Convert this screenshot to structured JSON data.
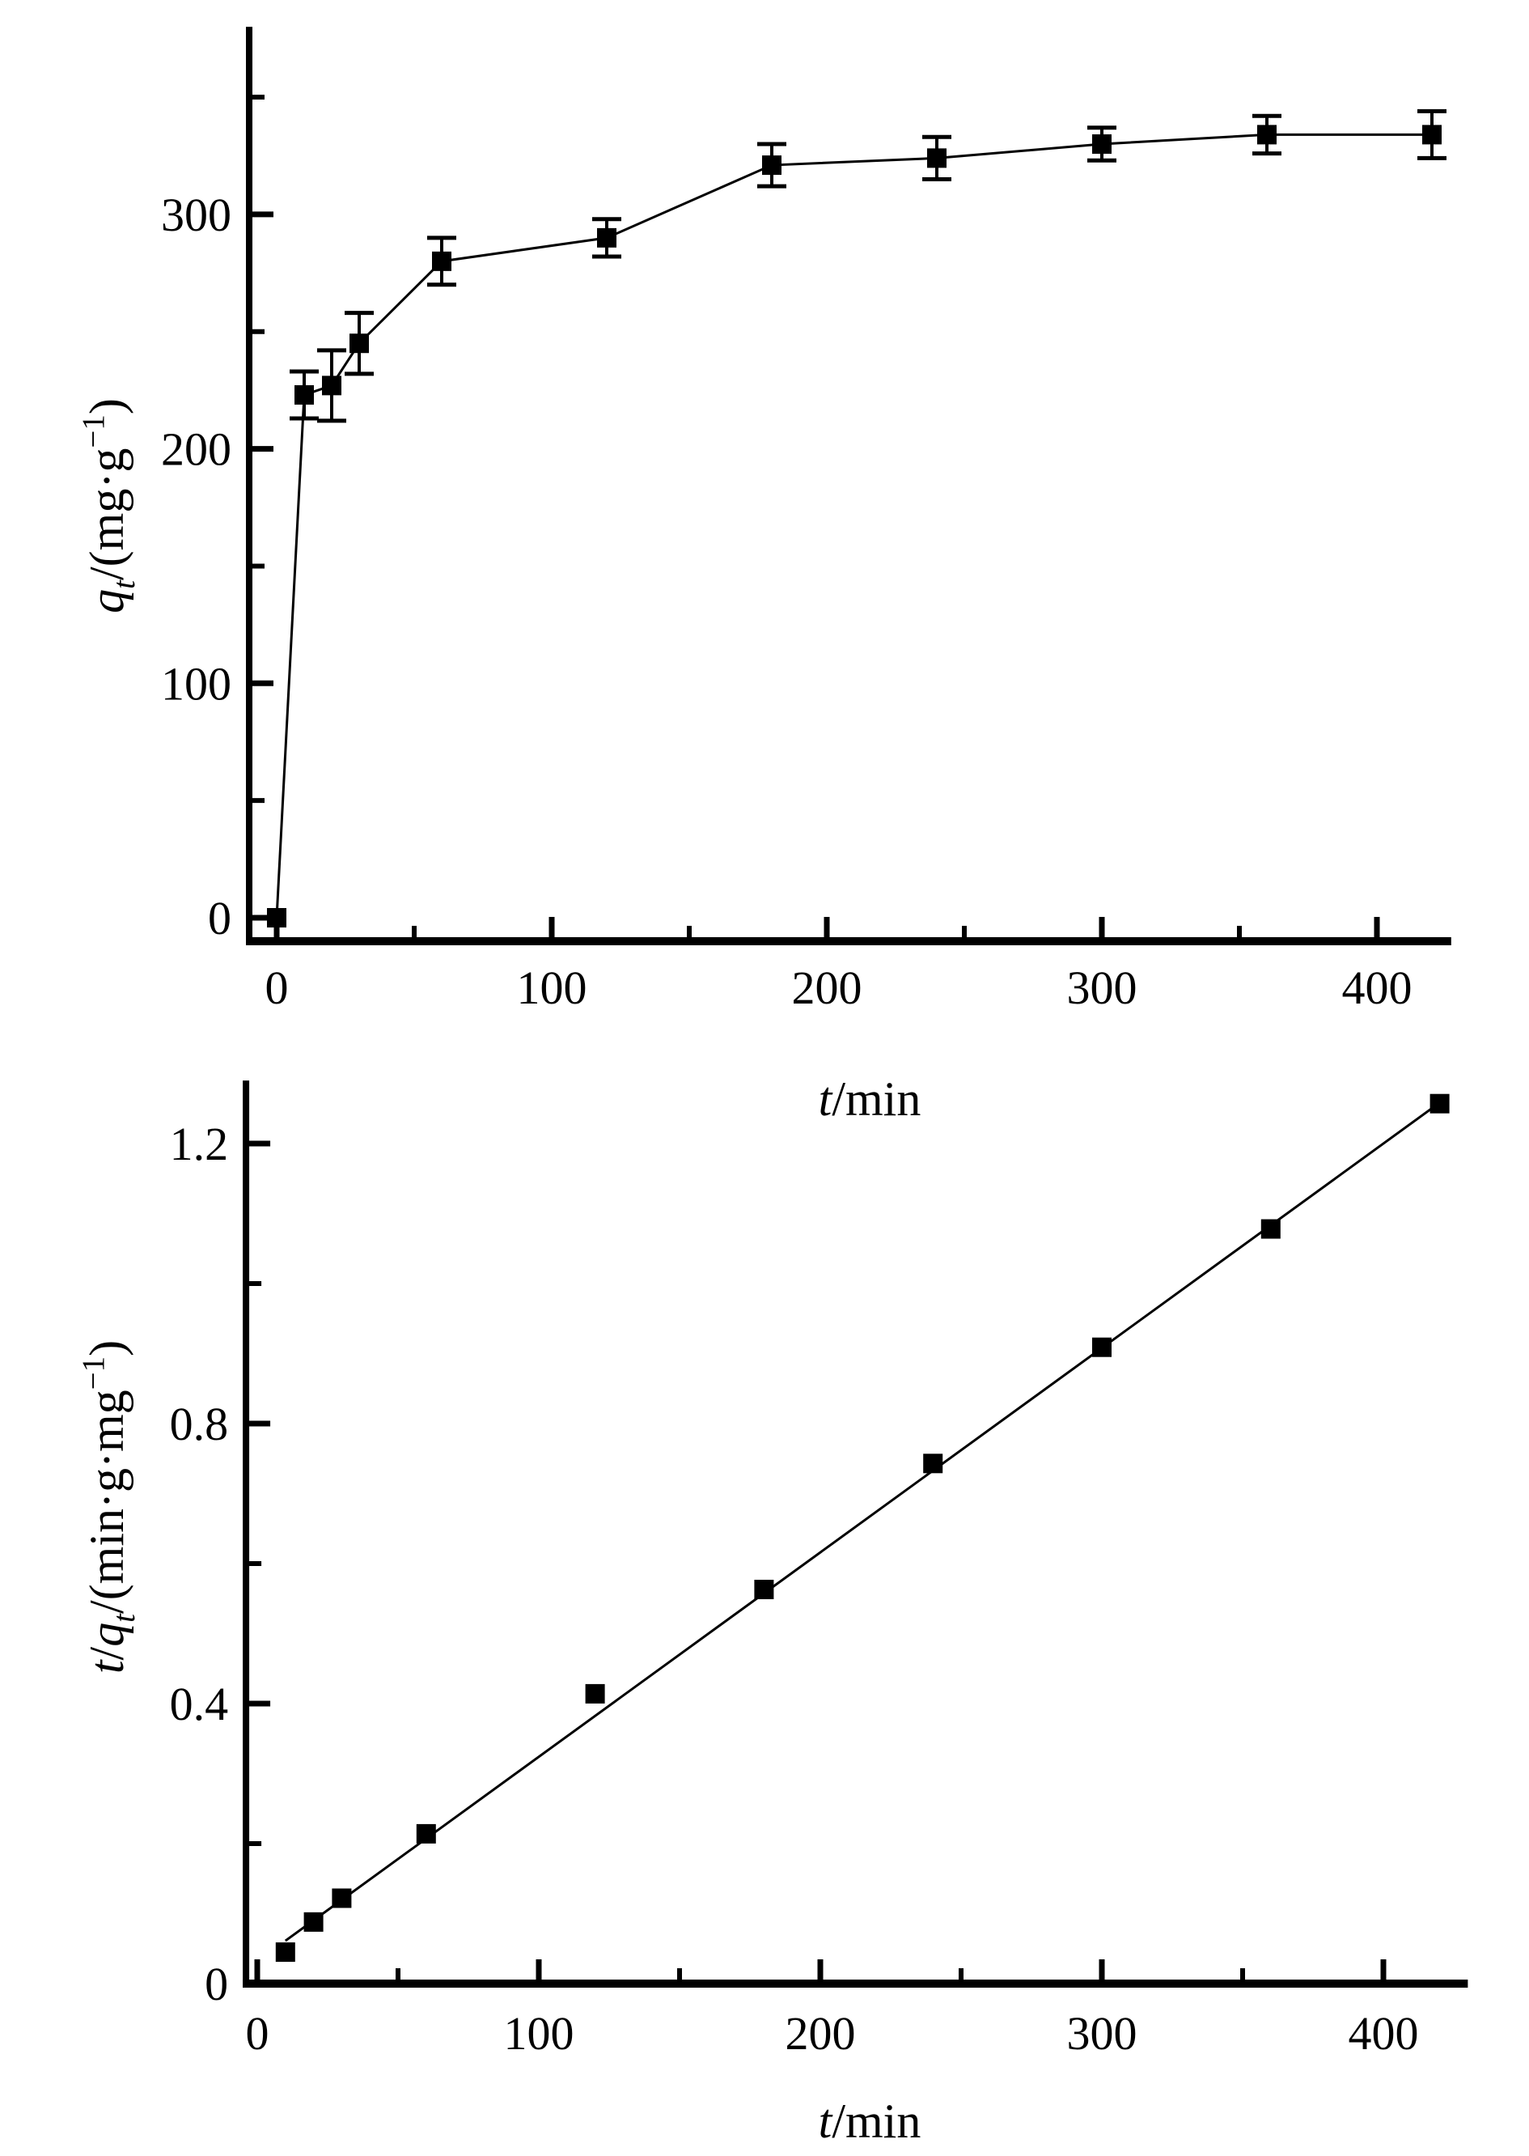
{
  "figure": {
    "background": "#ffffff",
    "ink_color": "#000000",
    "panel_count": 2
  },
  "chart_data": [
    {
      "id": "qt-vs-t",
      "type": "scatter",
      "title": "",
      "marker": "filled-black-square",
      "connect_points": true,
      "has_error_bars": true,
      "x": [
        0,
        10,
        20,
        30,
        60,
        120,
        180,
        240,
        300,
        360,
        420
      ],
      "y": [
        0,
        223,
        227,
        245,
        280,
        290,
        321,
        324,
        330,
        334,
        334
      ],
      "yerr": [
        0,
        10,
        15,
        13,
        10,
        8,
        9,
        9,
        7,
        8,
        10
      ],
      "xlabel_plain": "t/min",
      "ylabel_plain": "qt/(mg·g−1)",
      "xlabel_segments": [
        {
          "text": "t",
          "style": "italic"
        },
        {
          "text": "/min",
          "style": "normal"
        }
      ],
      "ylabel_segments": [
        {
          "text": "q",
          "style": "italic"
        },
        {
          "text": "t",
          "style": "italic-sub"
        },
        {
          "text": "/(mg·g",
          "style": "normal"
        },
        {
          "text": "−1",
          "style": "sup"
        },
        {
          "text": ")",
          "style": "normal"
        }
      ],
      "xlim": [
        -10,
        427
      ],
      "ylim": [
        -10,
        380
      ],
      "x_major_ticks": [
        0,
        100,
        200,
        300,
        400
      ],
      "x_tick_labels": [
        "0",
        "100",
        "200",
        "300",
        "400"
      ],
      "x_minor_ticks": [
        50,
        150,
        250,
        350
      ],
      "y_major_ticks": [
        0,
        100,
        200,
        300
      ],
      "y_tick_labels": [
        "0",
        "100",
        "200",
        "300"
      ],
      "y_minor_ticks": [
        50,
        150,
        250,
        350
      ],
      "grid": false,
      "legend": "none",
      "color": "#000000"
    },
    {
      "id": "t-over-qt-vs-t",
      "type": "scatter",
      "title": "",
      "marker": "filled-black-square",
      "connect_points": false,
      "has_error_bars": false,
      "x": [
        10,
        20,
        30,
        60,
        120,
        180,
        240,
        300,
        360,
        420
      ],
      "y": [
        0.045,
        0.088,
        0.122,
        0.214,
        0.414,
        0.563,
        0.743,
        0.909,
        1.078,
        1.257
      ],
      "fit_line": {
        "slope": 0.00292,
        "intercept": 0.032,
        "t_start": 10,
        "t_end": 420
      },
      "xlabel_plain": "t/min",
      "ylabel_plain": "t/qt/(min·g·mg−1)",
      "xlabel_segments": [
        {
          "text": "t",
          "style": "italic"
        },
        {
          "text": "/min",
          "style": "normal"
        }
      ],
      "ylabel_segments": [
        {
          "text": "t",
          "style": "italic"
        },
        {
          "text": "/",
          "style": "normal"
        },
        {
          "text": "q",
          "style": "italic"
        },
        {
          "text": "t",
          "style": "italic-sub"
        },
        {
          "text": "/(min·g·mg",
          "style": "normal"
        },
        {
          "text": "−1",
          "style": "sup"
        },
        {
          "text": ")",
          "style": "normal"
        }
      ],
      "xlim": [
        -4,
        430
      ],
      "ylim": [
        0,
        1.29
      ],
      "x_major_ticks": [
        0,
        100,
        200,
        300,
        400
      ],
      "x_tick_labels": [
        "0",
        "100",
        "200",
        "300",
        "400"
      ],
      "x_minor_ticks": [
        50,
        150,
        250,
        350
      ],
      "y_major_ticks": [
        0,
        0.4,
        0.8,
        1.2
      ],
      "y_tick_labels": [
        "0",
        "0.4",
        "0.8",
        "1.2"
      ],
      "y_minor_ticks": [
        0.2,
        0.6,
        1.0
      ],
      "grid": false,
      "legend": "none",
      "color": "#000000"
    }
  ]
}
